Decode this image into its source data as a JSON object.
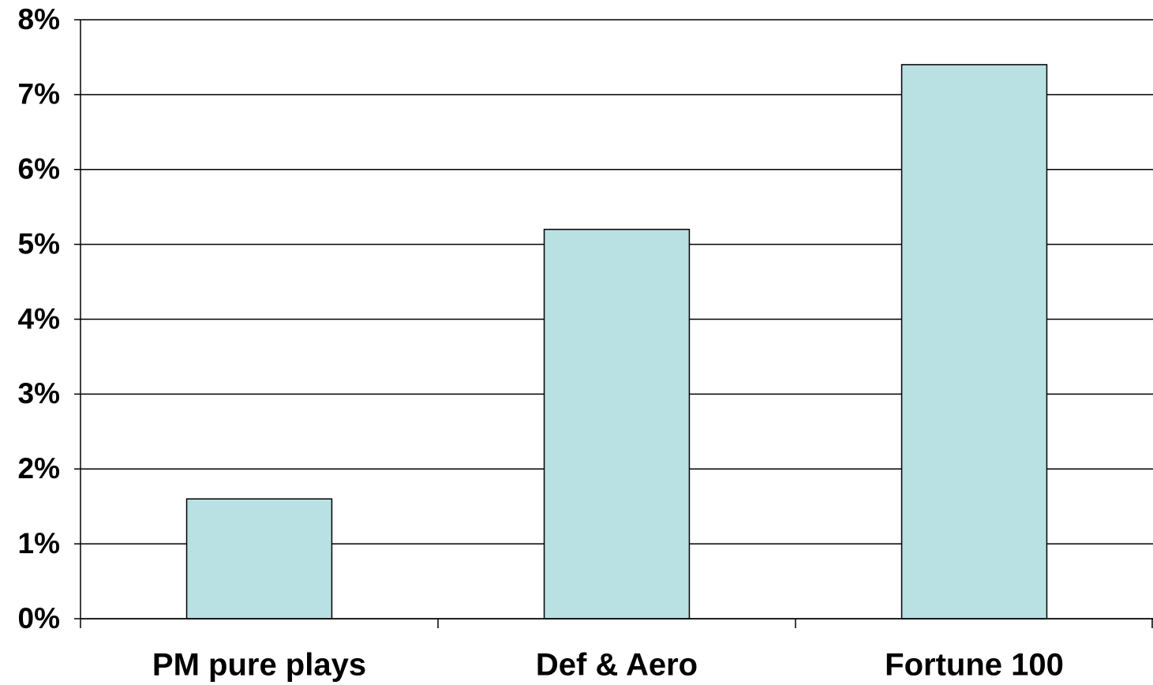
{
  "chart_data": {
    "type": "bar",
    "categories": [
      "PM pure plays",
      "Def & Aero",
      "Fortune 100"
    ],
    "values": [
      1.6,
      5.2,
      7.4
    ],
    "color": "#b9e0e3",
    "ylim": [
      0,
      8
    ],
    "yticks": [
      {
        "value": 0,
        "label": "0%"
      },
      {
        "value": 1,
        "label": "1%"
      },
      {
        "value": 2,
        "label": "2%"
      },
      {
        "value": 3,
        "label": "3%"
      },
      {
        "value": 4,
        "label": "4%"
      },
      {
        "value": 5,
        "label": "5%"
      },
      {
        "value": 6,
        "label": "6%"
      },
      {
        "value": 7,
        "label": "7%"
      },
      {
        "value": 8,
        "label": "8%"
      }
    ],
    "grid": true
  }
}
